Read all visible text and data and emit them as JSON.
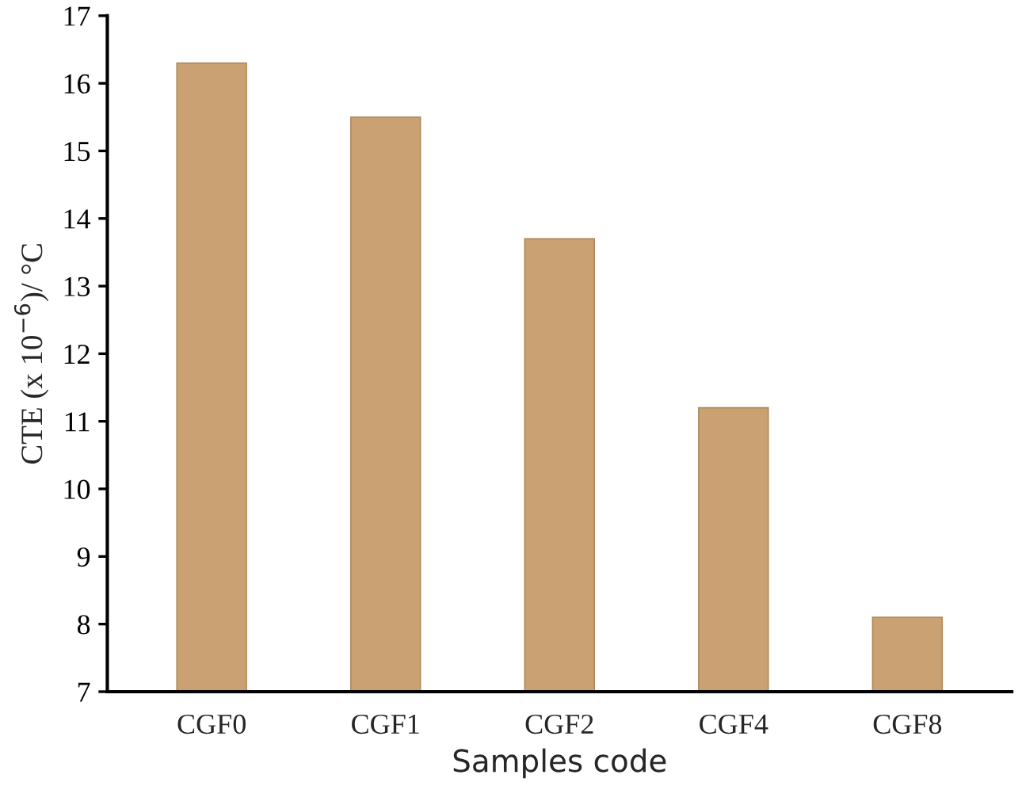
{
  "chart_data": {
    "type": "bar",
    "xlabel": "Samples code",
    "ylabel": "CTE (x 10$^{−6}$)/ °C",
    "categories": [
      "CGF0",
      "CGF1",
      "CGF2",
      "CGF4",
      "CGF8"
    ],
    "values": [
      16.3,
      15.5,
      13.7,
      11.2,
      8.1
    ],
    "color": "#c9a172",
    "ylim": [
      7,
      17
    ],
    "yticks": [
      7,
      8,
      9,
      10,
      11,
      12,
      13,
      14,
      15,
      16,
      17
    ],
    "grid": false
  }
}
